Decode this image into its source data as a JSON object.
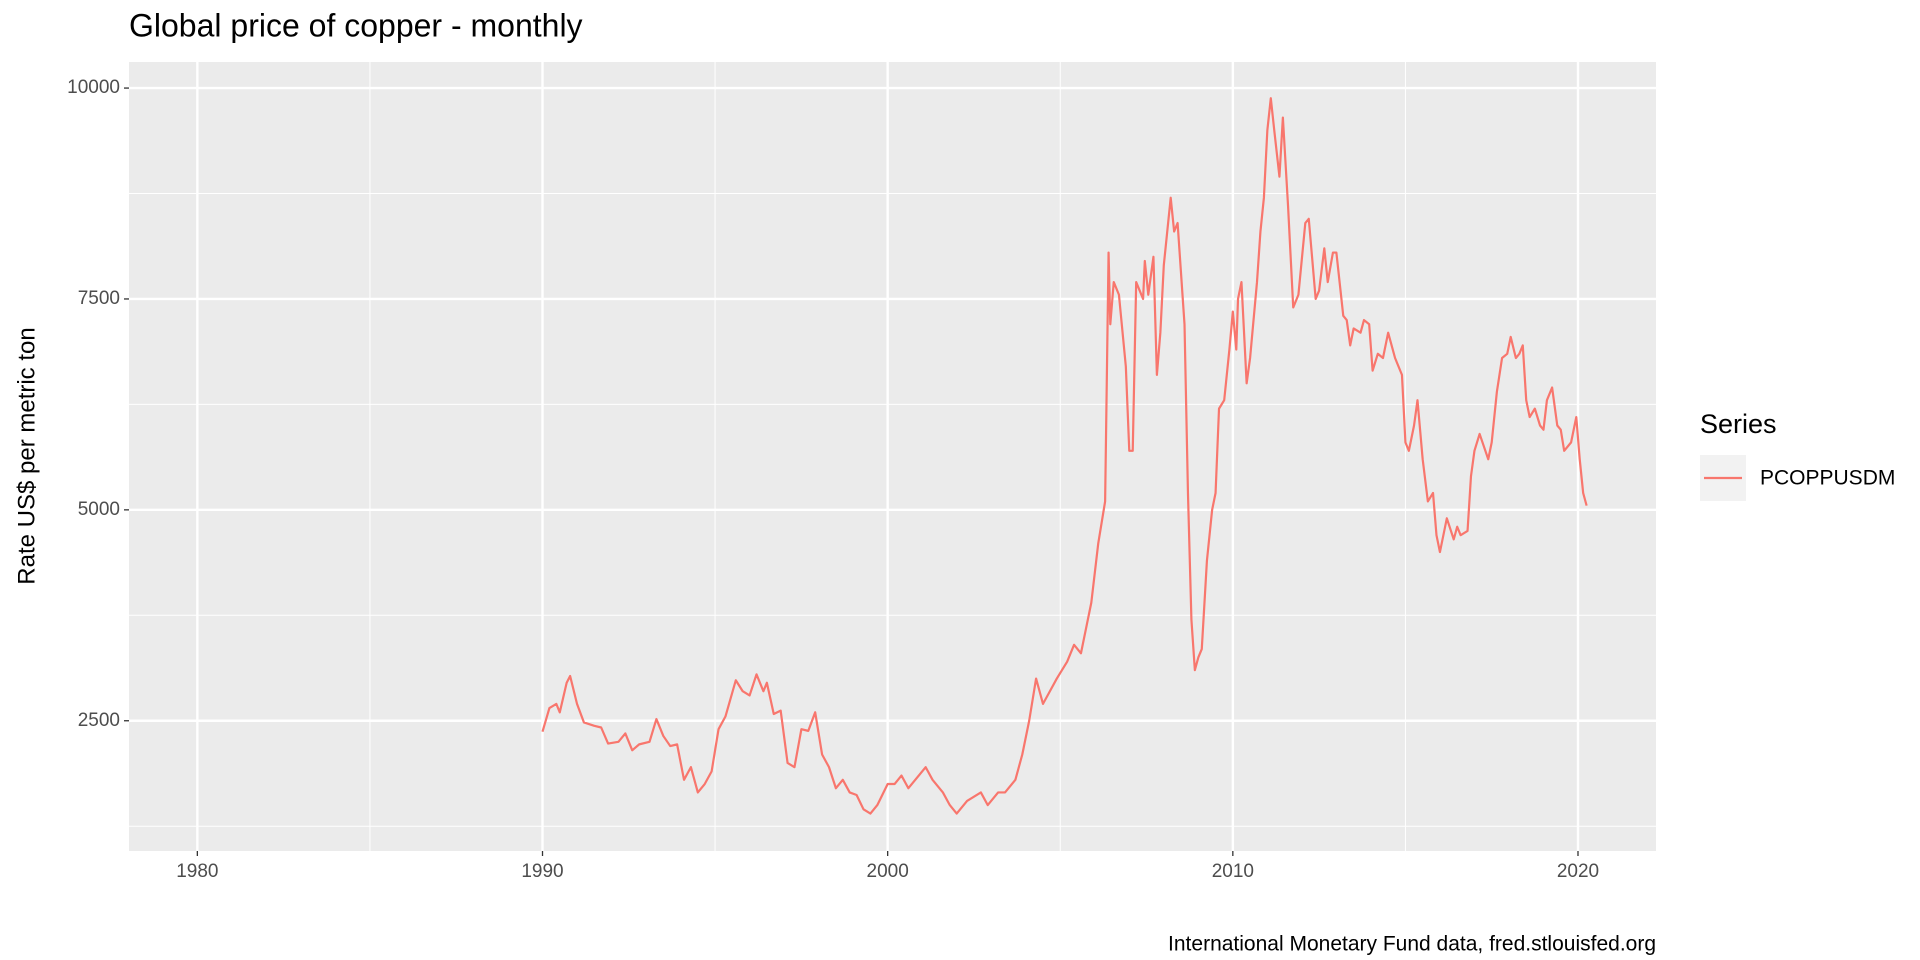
{
  "chart_data": {
    "type": "line",
    "title": "Global price of copper - monthly",
    "y_label": "Rate US$ per metric ton",
    "caption": "International Monetary Fund data, fred.stlouisfed.org",
    "legend_title": "Series",
    "legend_position": "right",
    "grid": true,
    "xlim": [
      1978.02,
      2022.26
    ],
    "xticks": [
      1980,
      1990,
      2000,
      2010,
      2020
    ],
    "xminor": [
      1985,
      1995,
      2005,
      2015
    ],
    "ylim": [
      956,
      10309
    ],
    "yticks": [
      2500,
      5000,
      7500,
      10000
    ],
    "yminor": [
      1250,
      3750,
      6250,
      8750
    ],
    "x": [
      1990.0,
      1990.2,
      1990.4,
      1990.5,
      1990.7,
      1990.8,
      1991.0,
      1991.2,
      1991.5,
      1991.7,
      1991.9,
      1992.2,
      1992.4,
      1992.6,
      1992.8,
      1993.1,
      1993.3,
      1993.5,
      1993.7,
      1993.9,
      1994.1,
      1994.3,
      1994.5,
      1994.7,
      1994.9,
      1995.1,
      1995.3,
      1995.6,
      1995.8,
      1996.0,
      1996.2,
      1996.4,
      1996.5,
      1996.7,
      1996.9,
      1997.1,
      1997.3,
      1997.5,
      1997.7,
      1997.9,
      1998.1,
      1998.3,
      1998.5,
      1998.7,
      1998.9,
      1999.1,
      1999.3,
      1999.5,
      1999.7,
      2000.0,
      2000.2,
      2000.4,
      2000.6,
      2000.8,
      2001.1,
      2001.3,
      2001.6,
      2001.8,
      2002.0,
      2002.3,
      2002.5,
      2002.7,
      2002.9,
      2003.2,
      2003.4,
      2003.7,
      2003.9,
      2004.1,
      2004.3,
      2004.5,
      2004.7,
      2004.9,
      2005.2,
      2005.4,
      2005.6,
      2005.7,
      2005.9,
      2006.1,
      2006.3,
      2006.4,
      2006.45,
      2006.55,
      2006.7,
      2006.9,
      2007.0,
      2007.1,
      2007.2,
      2007.4,
      2007.45,
      2007.55,
      2007.7,
      2007.8,
      2007.9,
      2008.0,
      2008.2,
      2008.3,
      2008.4,
      2008.6,
      2008.7,
      2008.8,
      2008.9,
      2009.0,
      2009.1,
      2009.25,
      2009.4,
      2009.5,
      2009.6,
      2009.75,
      2009.9,
      2010.0,
      2010.1,
      2010.15,
      2010.25,
      2010.4,
      2010.5,
      2010.7,
      2010.8,
      2010.9,
      2011.0,
      2011.1,
      2011.2,
      2011.35,
      2011.45,
      2011.6,
      2011.75,
      2011.9,
      2012.1,
      2012.2,
      2012.4,
      2012.5,
      2012.65,
      2012.75,
      2012.9,
      2013.0,
      2013.2,
      2013.3,
      2013.4,
      2013.5,
      2013.7,
      2013.8,
      2013.95,
      2014.05,
      2014.2,
      2014.35,
      2014.5,
      2014.7,
      2014.9,
      2015.0,
      2015.1,
      2015.25,
      2015.35,
      2015.5,
      2015.65,
      2015.8,
      2015.9,
      2016.0,
      2016.2,
      2016.4,
      2016.5,
      2016.6,
      2016.8,
      2016.9,
      2017.0,
      2017.15,
      2017.4,
      2017.5,
      2017.65,
      2017.8,
      2017.95,
      2018.05,
      2018.2,
      2018.3,
      2018.4,
      2018.5,
      2018.6,
      2018.75,
      2018.9,
      2019.0,
      2019.1,
      2019.25,
      2019.4,
      2019.5,
      2019.6,
      2019.8,
      2019.95,
      2020.05,
      2020.15,
      2020.25
    ],
    "series": [
      {
        "name": "PCOPPUSDM",
        "color": "#F8766D",
        "values": [
          2370,
          2650,
          2700,
          2600,
          2950,
          3030,
          2700,
          2480,
          2440,
          2420,
          2230,
          2250,
          2350,
          2150,
          2220,
          2250,
          2520,
          2320,
          2200,
          2220,
          1800,
          1950,
          1650,
          1750,
          1900,
          2400,
          2550,
          2980,
          2850,
          2800,
          3050,
          2850,
          2950,
          2580,
          2620,
          2000,
          1950,
          2400,
          2380,
          2600,
          2100,
          1950,
          1700,
          1800,
          1650,
          1620,
          1450,
          1400,
          1500,
          1750,
          1750,
          1850,
          1700,
          1800,
          1950,
          1800,
          1650,
          1500,
          1400,
          1550,
          1600,
          1650,
          1500,
          1650,
          1650,
          1800,
          2100,
          2500,
          3000,
          2700,
          2850,
          3000,
          3200,
          3400,
          3300,
          3500,
          3900,
          4600,
          5100,
          8050,
          7200,
          7700,
          7550,
          6700,
          5700,
          5700,
          7700,
          7500,
          7950,
          7550,
          8000,
          6600,
          7100,
          7900,
          8700,
          8300,
          8400,
          7200,
          5200,
          3700,
          3100,
          3250,
          3350,
          4400,
          5000,
          5200,
          6200,
          6300,
          6900,
          7350,
          6900,
          7500,
          7700,
          6500,
          6800,
          7700,
          8300,
          8700,
          9500,
          9880,
          9500,
          8950,
          9650,
          8600,
          7400,
          7550,
          8400,
          8450,
          7500,
          7600,
          8100,
          7700,
          8050,
          8050,
          7300,
          7250,
          6950,
          7150,
          7100,
          7250,
          7200,
          6650,
          6850,
          6800,
          7100,
          6800,
          6600,
          5800,
          5700,
          6000,
          6300,
          5600,
          5100,
          5200,
          4700,
          4500,
          4900,
          4650,
          4800,
          4700,
          4750,
          5400,
          5700,
          5900,
          5600,
          5800,
          6400,
          6800,
          6850,
          7050,
          6800,
          6850,
          6950,
          6300,
          6100,
          6200,
          6000,
          5950,
          6300,
          6450,
          6000,
          5950,
          5700,
          5800,
          6100,
          5600,
          5200,
          5050
        ]
      }
    ]
  }
}
